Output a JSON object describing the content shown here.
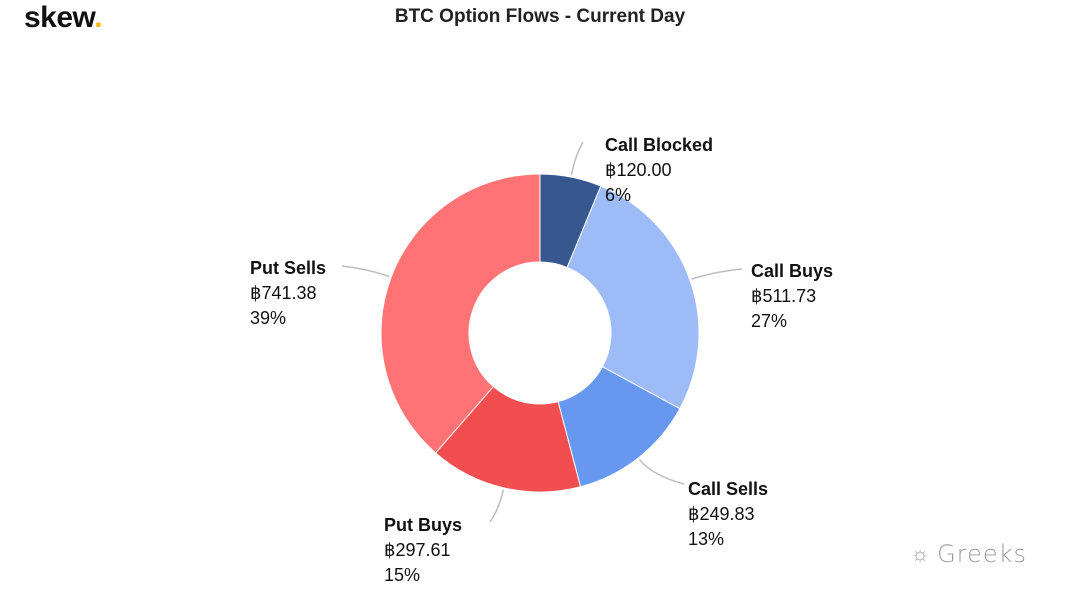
{
  "logo": {
    "text": "skew",
    "accent": "."
  },
  "watermark": {
    "text": "Greeks",
    "icon": "wechat-icon"
  },
  "chart_data": {
    "type": "pie",
    "donut": true,
    "title": "BTC Option Flows - Current Day",
    "currency_symbol": "฿",
    "slices": [
      {
        "label": "Call Blocked",
        "value": 120.0,
        "value_text": "฿120.00",
        "percent_text": "6%",
        "color": "#36588f"
      },
      {
        "label": "Call Buys",
        "value": 511.73,
        "value_text": "฿511.73",
        "percent_text": "27%",
        "color": "#9dbcf7"
      },
      {
        "label": "Call Sells",
        "value": 249.83,
        "value_text": "฿249.83",
        "percent_text": "13%",
        "color": "#6598ee"
      },
      {
        "label": "Put Buys",
        "value": 297.61,
        "value_text": "฿297.61",
        "percent_text": "15%",
        "color": "#f24d4f"
      },
      {
        "label": "Put Sells",
        "value": 741.38,
        "value_text": "฿741.38",
        "percent_text": "39%",
        "color": "#ff7374"
      }
    ]
  }
}
